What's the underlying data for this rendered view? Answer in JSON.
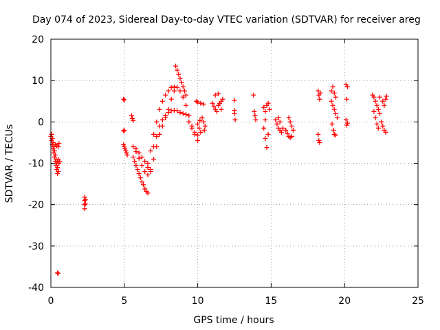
{
  "chart_data": {
    "type": "scatter",
    "title": "Day 074 of 2023, Sidereal Day-to-day VTEC variation (SDTVAR) for receiver areg",
    "xlabel": "GPS time / hours",
    "ylabel": "SDTVAR / TECUs",
    "xlim": [
      0,
      25
    ],
    "ylim": [
      -40,
      20
    ],
    "xticks": [
      0,
      5,
      10,
      15,
      20,
      25
    ],
    "yticks": [
      -40,
      -30,
      -20,
      -10,
      0,
      10,
      20
    ],
    "xtick_labels": [
      "0",
      "5",
      "10",
      "15",
      "20",
      "25"
    ],
    "ytick_labels": [
      "-40",
      "-30",
      "-20",
      "-10",
      "0",
      "10",
      "20"
    ],
    "grid": true,
    "marker": "+",
    "color": "#ff0000",
    "series": [
      {
        "name": "SDTVAR",
        "points": [
          [
            0.0,
            -3.5
          ],
          [
            0.05,
            -4.5
          ],
          [
            0.1,
            -5.5
          ],
          [
            0.15,
            -6.5
          ],
          [
            0.2,
            -7.5
          ],
          [
            0.25,
            -8.5
          ],
          [
            0.3,
            -9.5
          ],
          [
            0.35,
            -10.5
          ],
          [
            0.4,
            -11.5
          ],
          [
            0.45,
            -12.5
          ],
          [
            0.05,
            -3
          ],
          [
            0.1,
            -4
          ],
          [
            0.15,
            -5
          ],
          [
            0.2,
            -6
          ],
          [
            0.25,
            -7
          ],
          [
            0.3,
            -8
          ],
          [
            0.35,
            -9
          ],
          [
            0.4,
            -10
          ],
          [
            0.45,
            -11
          ],
          [
            0.5,
            -12
          ],
          [
            0.3,
            -5.5
          ],
          [
            0.4,
            -5.8
          ],
          [
            0.5,
            -6
          ],
          [
            0.55,
            -5.2
          ],
          [
            0.45,
            -9.5
          ],
          [
            0.5,
            -9
          ],
          [
            0.55,
            -10
          ],
          [
            0.6,
            -9.5
          ],
          [
            0.45,
            -36.5
          ],
          [
            0.5,
            -36.6
          ],
          [
            2.3,
            -18.2
          ],
          [
            2.3,
            -19
          ],
          [
            2.3,
            -20
          ],
          [
            2.3,
            -21
          ],
          [
            2.35,
            -18.8
          ],
          [
            2.35,
            -19.8
          ],
          [
            4.95,
            5.5
          ],
          [
            5.0,
            5.3
          ],
          [
            4.95,
            -2.2
          ],
          [
            5.0,
            -2.0
          ],
          [
            4.95,
            -5.5
          ],
          [
            5.0,
            -6
          ],
          [
            5.05,
            -6.5
          ],
          [
            5.1,
            -7
          ],
          [
            5.15,
            -7.5
          ],
          [
            5.2,
            -8
          ],
          [
            5.5,
            1.5
          ],
          [
            5.55,
            0.8
          ],
          [
            5.6,
            0.3
          ],
          [
            5.6,
            -6.0
          ],
          [
            5.8,
            -7.2
          ],
          [
            6.0,
            -8.8
          ],
          [
            6.2,
            -10.5
          ],
          [
            6.4,
            -12
          ],
          [
            6.6,
            -12.8
          ],
          [
            6.8,
            -11.5
          ],
          [
            5.6,
            -8.5
          ],
          [
            5.8,
            -10.5
          ],
          [
            6.0,
            -12.5
          ],
          [
            6.2,
            -14.5
          ],
          [
            6.4,
            -16.2
          ],
          [
            6.6,
            -17.2
          ],
          [
            5.7,
            -9.5
          ],
          [
            5.9,
            -11.5
          ],
          [
            6.1,
            -13.5
          ],
          [
            6.3,
            -15.2
          ],
          [
            6.5,
            -16.8
          ],
          [
            5.8,
            -6.5
          ],
          [
            6.0,
            -7.5
          ],
          [
            6.2,
            -8.5
          ],
          [
            6.4,
            -9.5
          ],
          [
            6.6,
            -11
          ],
          [
            6.6,
            -10
          ],
          [
            6.8,
            -7
          ],
          [
            7.0,
            -3
          ],
          [
            7.2,
            0
          ],
          [
            7.4,
            3
          ],
          [
            7.6,
            5
          ],
          [
            7.8,
            6.5
          ],
          [
            8.0,
            7.5
          ],
          [
            8.2,
            8.3
          ],
          [
            8.4,
            8.5
          ],
          [
            8.6,
            8.3
          ],
          [
            8.8,
            7.5
          ],
          [
            9.0,
            6
          ],
          [
            9.2,
            4
          ],
          [
            9.4,
            1.5
          ],
          [
            9.6,
            -1
          ],
          [
            9.8,
            -3
          ],
          [
            10.0,
            -4.5
          ],
          [
            7.0,
            -6
          ],
          [
            7.2,
            -3.5
          ],
          [
            7.4,
            -1
          ],
          [
            7.6,
            0.5
          ],
          [
            7.8,
            1.5
          ],
          [
            8.0,
            2.3
          ],
          [
            8.2,
            2.7
          ],
          [
            8.4,
            2.8
          ],
          [
            8.6,
            2.7
          ],
          [
            8.8,
            2.3
          ],
          [
            9.0,
            2
          ],
          [
            9.2,
            1.8
          ],
          [
            6.8,
            -12
          ],
          [
            7.0,
            -9
          ],
          [
            7.2,
            -6
          ],
          [
            7.4,
            -3
          ],
          [
            7.6,
            -1
          ],
          [
            7.8,
            1
          ],
          [
            8.0,
            3
          ],
          [
            8.2,
            5.5
          ],
          [
            8.4,
            7.5
          ],
          [
            8.5,
            13.5
          ],
          [
            8.6,
            12.5
          ],
          [
            8.7,
            11.5
          ],
          [
            8.8,
            10.5
          ],
          [
            8.9,
            9.5
          ],
          [
            9.0,
            8.5
          ],
          [
            9.1,
            7.5
          ],
          [
            9.2,
            6.5
          ],
          [
            9.4,
            0
          ],
          [
            9.6,
            -1.5
          ],
          [
            9.8,
            -2.5
          ],
          [
            10.0,
            -3.2
          ],
          [
            10.0,
            -0.5
          ],
          [
            10.1,
            -1.5
          ],
          [
            10.2,
            -2.5
          ],
          [
            10.15,
            0.3
          ],
          [
            10.3,
            1
          ],
          [
            10.4,
            0
          ],
          [
            10.5,
            -1
          ],
          [
            10.45,
            -2
          ],
          [
            9.9,
            5
          ],
          [
            10.0,
            4.8
          ],
          [
            10.2,
            4.5
          ],
          [
            10.4,
            4.3
          ],
          [
            11.0,
            4.5
          ],
          [
            11.1,
            3.8
          ],
          [
            11.2,
            3
          ],
          [
            11.3,
            2.5
          ],
          [
            11.4,
            4
          ],
          [
            11.5,
            4.5
          ],
          [
            11.6,
            3
          ],
          [
            11.2,
            6.5
          ],
          [
            11.4,
            6.8
          ],
          [
            11.6,
            5
          ],
          [
            11.7,
            5.5
          ],
          [
            12.5,
            5.2
          ],
          [
            12.5,
            2.8
          ],
          [
            12.5,
            2
          ],
          [
            12.55,
            0.5
          ],
          [
            13.8,
            6.5
          ],
          [
            13.85,
            2.5
          ],
          [
            13.9,
            1.5
          ],
          [
            13.95,
            0.5
          ],
          [
            14.5,
            3.5
          ],
          [
            14.6,
            2.5
          ],
          [
            14.7,
            4
          ],
          [
            14.8,
            4.5
          ],
          [
            14.9,
            3
          ],
          [
            14.6,
            0.5
          ],
          [
            14.5,
            -1.5
          ],
          [
            14.6,
            -4
          ],
          [
            14.7,
            -6.2
          ],
          [
            14.8,
            -3
          ],
          [
            15.3,
            0.5
          ],
          [
            15.4,
            -0.5
          ],
          [
            15.5,
            -1.5
          ],
          [
            15.6,
            -2
          ],
          [
            15.7,
            -2.5
          ],
          [
            15.5,
            1
          ],
          [
            15.6,
            0
          ],
          [
            15.8,
            -1.5
          ],
          [
            16.0,
            -2
          ],
          [
            16.1,
            -2.8
          ],
          [
            16.2,
            -3.5
          ],
          [
            16.3,
            -3.8
          ],
          [
            16.4,
            -3.5
          ],
          [
            16.2,
            1
          ],
          [
            16.3,
            0
          ],
          [
            16.4,
            -1
          ],
          [
            16.5,
            -2
          ],
          [
            18.2,
            7.5
          ],
          [
            18.25,
            6.5
          ],
          [
            18.3,
            5.5
          ],
          [
            18.35,
            7
          ],
          [
            18.2,
            -3
          ],
          [
            18.25,
            -4.5
          ],
          [
            18.3,
            -5
          ],
          [
            19.1,
            7.5
          ],
          [
            19.2,
            8.5
          ],
          [
            19.3,
            7
          ],
          [
            19.4,
            6
          ],
          [
            19.1,
            5
          ],
          [
            19.2,
            4
          ],
          [
            19.3,
            3
          ],
          [
            19.4,
            2
          ],
          [
            19.5,
            1
          ],
          [
            19.15,
            -0.5
          ],
          [
            19.25,
            -2
          ],
          [
            19.3,
            -3
          ],
          [
            19.4,
            -3.2
          ],
          [
            20.1,
            9
          ],
          [
            20.2,
            8.5
          ],
          [
            20.15,
            5.5
          ],
          [
            20.1,
            0.5
          ],
          [
            20.2,
            -0.3
          ],
          [
            20.15,
            -0.8
          ],
          [
            21.9,
            6.5
          ],
          [
            22.0,
            6
          ],
          [
            22.1,
            5
          ],
          [
            22.2,
            4
          ],
          [
            22.3,
            3
          ],
          [
            22.4,
            2
          ],
          [
            22.5,
            0
          ],
          [
            22.6,
            -1
          ],
          [
            22.7,
            -2
          ],
          [
            22.8,
            -2.5
          ],
          [
            22.4,
            6
          ],
          [
            22.6,
            5
          ],
          [
            22.7,
            4
          ],
          [
            22.8,
            5.5
          ],
          [
            22.85,
            6.2
          ],
          [
            22.0,
            2.5
          ],
          [
            22.1,
            1
          ],
          [
            22.2,
            -0.5
          ],
          [
            22.3,
            -1.5
          ]
        ]
      }
    ]
  }
}
